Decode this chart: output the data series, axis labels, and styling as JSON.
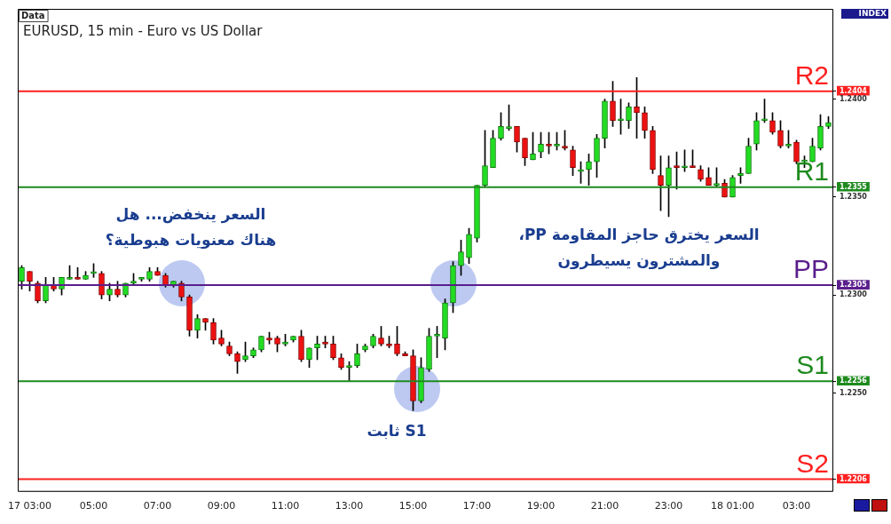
{
  "chart_data": {
    "type": "candlestick",
    "title": "EURUSD, 15 min - Euro vs US Dollar",
    "categories": [
      null,
      "17 03:00",
      null,
      null,
      null,
      null,
      null,
      null,
      null,
      "05:00",
      null,
      null,
      null,
      null,
      null,
      null,
      null,
      "07:00",
      null,
      null,
      null,
      null,
      null,
      null,
      null,
      "09:00",
      null,
      null,
      null,
      null,
      null,
      null,
      null,
      "11:00",
      null,
      null,
      null,
      null,
      null,
      null,
      null,
      "13:00",
      null,
      null,
      null,
      null,
      null,
      null,
      null,
      "15:00",
      null,
      null,
      null,
      null,
      null,
      null,
      null,
      "17:00",
      null,
      null,
      null,
      null,
      null,
      null,
      null,
      "19:00",
      null,
      null,
      null,
      null,
      null,
      null,
      null,
      "21:00",
      null,
      null,
      null,
      null,
      null,
      null,
      null,
      "23:00",
      null,
      null,
      null,
      null,
      null,
      null,
      null,
      "18 01:00",
      null,
      null,
      null,
      null,
      null,
      null,
      null,
      "03:00",
      null,
      null,
      null,
      null
    ],
    "ohlc": [
      [
        1.2307,
        1.2315,
        1.2303,
        1.2314
      ],
      [
        1.2312,
        1.2312,
        1.2302,
        1.2307
      ],
      [
        1.2306,
        1.2307,
        1.2296,
        1.2297
      ],
      [
        1.2297,
        1.2309,
        1.2296,
        1.2305
      ],
      [
        1.2305,
        1.2309,
        1.2302,
        1.2303
      ],
      [
        1.2303,
        1.2309,
        1.23,
        1.2309
      ],
      [
        1.2308,
        1.2315,
        1.2308,
        1.2309
      ],
      [
        1.2309,
        1.2314,
        1.2308,
        1.2308
      ],
      [
        1.2308,
        1.2312,
        1.2308,
        1.231
      ],
      [
        1.2311,
        1.2316,
        1.2309,
        1.2311
      ],
      [
        1.2311,
        1.2312,
        1.2298,
        1.23
      ],
      [
        1.23,
        1.2306,
        1.2297,
        1.2303
      ],
      [
        1.2303,
        1.2307,
        1.2299,
        1.23
      ],
      [
        1.23,
        1.2306,
        1.2299,
        1.2306
      ],
      [
        1.2306,
        1.2311,
        1.2305,
        1.2307
      ],
      [
        1.2308,
        1.2309,
        1.2307,
        1.2309
      ],
      [
        1.2308,
        1.2314,
        1.2307,
        1.2312
      ],
      [
        1.2312,
        1.2314,
        1.231,
        1.231
      ],
      [
        1.231,
        1.2311,
        1.2304,
        1.2305
      ],
      [
        1.2305,
        1.2307,
        1.2304,
        1.2307
      ],
      [
        1.2306,
        1.2307,
        1.2297,
        1.2299
      ],
      [
        1.2299,
        1.23,
        1.2279,
        1.2282
      ],
      [
        1.2282,
        1.229,
        1.2278,
        1.2288
      ],
      [
        1.2288,
        1.2288,
        1.2282,
        1.2286
      ],
      [
        1.2286,
        1.2288,
        1.2275,
        1.2277
      ],
      [
        1.2278,
        1.2282,
        1.2274,
        1.2275
      ],
      [
        1.2274,
        1.2276,
        1.2269,
        1.227
      ],
      [
        1.227,
        1.2271,
        1.226,
        1.2266
      ],
      [
        1.2267,
        1.2276,
        1.2266,
        1.2269
      ],
      [
        1.2269,
        1.2273,
        1.2268,
        1.2272
      ],
      [
        1.2272,
        1.2279,
        1.2271,
        1.2279
      ],
      [
        1.2278,
        1.2281,
        1.2275,
        1.2277
      ],
      [
        1.2278,
        1.2279,
        1.2271,
        1.2275
      ],
      [
        1.2275,
        1.228,
        1.2274,
        1.2276
      ],
      [
        1.2277,
        1.2279,
        1.2276,
        1.2279
      ],
      [
        1.2279,
        1.2282,
        1.2266,
        1.2267
      ],
      [
        1.2267,
        1.2273,
        1.2263,
        1.2273
      ],
      [
        1.2273,
        1.2279,
        1.2267,
        1.2275
      ],
      [
        1.2276,
        1.2279,
        1.2273,
        1.2275
      ],
      [
        1.2275,
        1.2279,
        1.2267,
        1.2268
      ],
      [
        1.2268,
        1.227,
        1.2262,
        1.2263
      ],
      [
        1.2263,
        1.2266,
        1.2256,
        1.2264
      ],
      [
        1.2264,
        1.2275,
        1.2263,
        1.227
      ],
      [
        1.2272,
        1.2275,
        1.2271,
        1.2274
      ],
      [
        1.2274,
        1.228,
        1.2273,
        1.2279
      ],
      [
        1.2278,
        1.2284,
        1.2274,
        1.2275
      ],
      [
        1.2275,
        1.2279,
        1.2273,
        1.2274
      ],
      [
        1.2275,
        1.2284,
        1.2269,
        1.227
      ],
      [
        1.227,
        1.2271,
        1.2269,
        1.2269
      ],
      [
        1.2269,
        1.2272,
        1.2241,
        1.2246
      ],
      [
        1.2246,
        1.2268,
        1.2245,
        1.2263
      ],
      [
        1.2262,
        1.2283,
        1.2261,
        1.2279
      ],
      [
        1.2279,
        1.2284,
        1.2268,
        1.228
      ],
      [
        1.2278,
        1.2298,
        1.2272,
        1.2296
      ],
      [
        1.2296,
        1.2317,
        1.2291,
        1.2315
      ],
      [
        1.2315,
        1.2328,
        1.231,
        1.2322
      ],
      [
        1.2319,
        1.2334,
        1.2316,
        1.2331
      ],
      [
        1.2329,
        1.2356,
        1.2327,
        1.2356
      ],
      [
        1.2356,
        1.2384,
        1.2355,
        1.2366
      ],
      [
        1.2365,
        1.2384,
        1.2365,
        1.238
      ],
      [
        1.238,
        1.2393,
        1.2379,
        1.2386
      ],
      [
        1.2385,
        1.2397,
        1.2384,
        1.2385
      ],
      [
        1.2386,
        1.2386,
        1.2373,
        1.2378
      ],
      [
        1.238,
        1.238,
        1.2366,
        1.237
      ],
      [
        1.2369,
        1.2383,
        1.2369,
        1.2372
      ],
      [
        1.2373,
        1.2383,
        1.237,
        1.2377
      ],
      [
        1.2377,
        1.2383,
        1.2372,
        1.2376
      ],
      [
        1.2376,
        1.2383,
        1.2374,
        1.2377
      ],
      [
        1.2376,
        1.2384,
        1.2374,
        1.2375
      ],
      [
        1.2374,
        1.2376,
        1.2361,
        1.2365
      ],
      [
        1.2363,
        1.2368,
        1.2357,
        1.2363
      ],
      [
        1.2364,
        1.2372,
        1.2356,
        1.2368
      ],
      [
        1.2368,
        1.2382,
        1.236,
        1.238
      ],
      [
        1.238,
        1.24,
        1.2375,
        1.2399
      ],
      [
        1.2399,
        1.2409,
        1.2386,
        1.2389
      ],
      [
        1.2389,
        1.24,
        1.2382,
        1.2389
      ],
      [
        1.2389,
        1.2398,
        1.2385,
        1.2396
      ],
      [
        1.2396,
        1.2411,
        1.238,
        1.2393
      ],
      [
        1.2393,
        1.2396,
        1.238,
        1.2384
      ],
      [
        1.2384,
        1.2386,
        1.2362,
        1.2364
      ],
      [
        1.2361,
        1.2371,
        1.2343,
        1.2356
      ],
      [
        1.2356,
        1.2371,
        1.234,
        1.2365
      ],
      [
        1.2366,
        1.2373,
        1.2354,
        1.2365
      ],
      [
        1.2365,
        1.2374,
        1.2363,
        1.2365
      ],
      [
        1.2366,
        1.2374,
        1.2365,
        1.2365
      ],
      [
        1.2364,
        1.2366,
        1.2358,
        1.2359
      ],
      [
        1.236,
        1.2365,
        1.2356,
        1.2356
      ],
      [
        1.2356,
        1.2365,
        1.2355,
        1.2356
      ],
      [
        1.2357,
        1.2359,
        1.235,
        1.235
      ],
      [
        1.235,
        1.2361,
        1.235,
        1.236
      ],
      [
        1.2361,
        1.2365,
        1.2357,
        1.2362
      ],
      [
        1.2362,
        1.238,
        1.2362,
        1.2376
      ],
      [
        1.2377,
        1.2393,
        1.2374,
        1.2389
      ],
      [
        1.2389,
        1.24,
        1.2388,
        1.2389
      ],
      [
        1.2389,
        1.2393,
        1.2382,
        1.2383
      ],
      [
        1.2384,
        1.2389,
        1.2375,
        1.2376
      ],
      [
        1.2376,
        1.2384,
        1.2375,
        1.2377
      ],
      [
        1.2378,
        1.2379,
        1.2367,
        1.2368
      ],
      [
        1.2368,
        1.2371,
        1.2365,
        1.2368
      ],
      [
        1.2368,
        1.238,
        1.2368,
        1.2376
      ],
      [
        1.2375,
        1.2392,
        1.2374,
        1.2386
      ],
      [
        1.2386,
        1.2391,
        1.2385,
        1.2388
      ]
    ],
    "ylim": [
      1.22,
      1.2446
    ],
    "yticks": [
      1.2404,
      {
        "value": 1.24,
        "label": "1.2400"
      },
      1.2355,
      {
        "value": 1.235,
        "label": "1.2350"
      },
      1.2305,
      {
        "value": 1.23,
        "label": "1.2300"
      },
      1.2256,
      {
        "value": 1.225,
        "label": "1.2250"
      },
      1.2206
    ],
    "ref_lines": [
      {
        "axis": "y",
        "value": 1.2404,
        "label": "R2",
        "color": "#ff2020"
      },
      {
        "axis": "y",
        "value": 1.2355,
        "label": "R1",
        "color": "#1e8a1e"
      },
      {
        "axis": "y",
        "value": 1.2305,
        "label": "PP",
        "color": "#5a1e8c"
      },
      {
        "axis": "y",
        "value": 1.2256,
        "label": "S1",
        "color": "#1e8a1e"
      },
      {
        "axis": "y",
        "value": 1.2206,
        "label": "S2",
        "color": "#ff2020"
      }
    ],
    "annotations": [
      "Data",
      "INDEX",
      "السعر ينخفض... هل\nهناك معنويات هبوطية؟",
      "S1 ثابت",
      "السعر يخترق حاجز المقاومة PP،\nوالمشترون يسيطرون"
    ]
  }
}
